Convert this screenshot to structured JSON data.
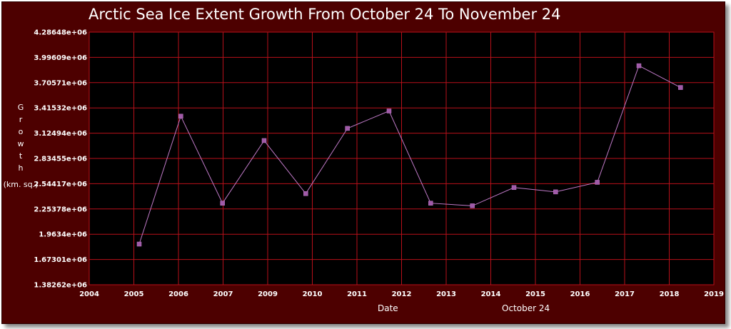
{
  "chart_data": {
    "type": "line",
    "title": "Arctic Sea Ice Extent Growth From October 24 To November 24",
    "ylabel": "Growth",
    "ylabel_unit": "(km. sq.)",
    "xlabel": "Date",
    "x_note": "October 24",
    "y_ticks": [
      "1.38262e+06",
      "1.67301e+06",
      "1.9634e+06",
      "2.25378e+06",
      "2.54417e+06",
      "2.83455e+06",
      "3.12494e+06",
      "3.41532e+06",
      "3.70571e+06",
      "3.99609e+06",
      "4.28648e+06"
    ],
    "x_ticks": [
      "2004",
      "2005",
      "2006",
      "2007",
      "2009",
      "2010",
      "2011",
      "2012",
      "2013",
      "2014",
      "2015",
      "2016",
      "2017",
      "2018",
      "2019"
    ],
    "ylim": [
      1382620,
      4286480
    ],
    "xlim": [
      2004,
      2019
    ],
    "x": [
      2005.2,
      2006.2,
      2007.2,
      2008.2,
      2009.2,
      2010.2,
      2011.2,
      2012.2,
      2013.2,
      2014.2,
      2015.2,
      2016.2,
      2017.2,
      2018.2
    ],
    "values": [
      1850000,
      3320000,
      2320000,
      3040000,
      2430000,
      3180000,
      3380000,
      2320000,
      2290000,
      2500000,
      2450000,
      2560000,
      3900000,
      3650000
    ],
    "grid": true,
    "line_color": "#c07ac8",
    "marker_color": "#a05aa8",
    "grid_color": "#b8101a",
    "plot_background": "#000000",
    "frame_background": "#4d0000"
  }
}
